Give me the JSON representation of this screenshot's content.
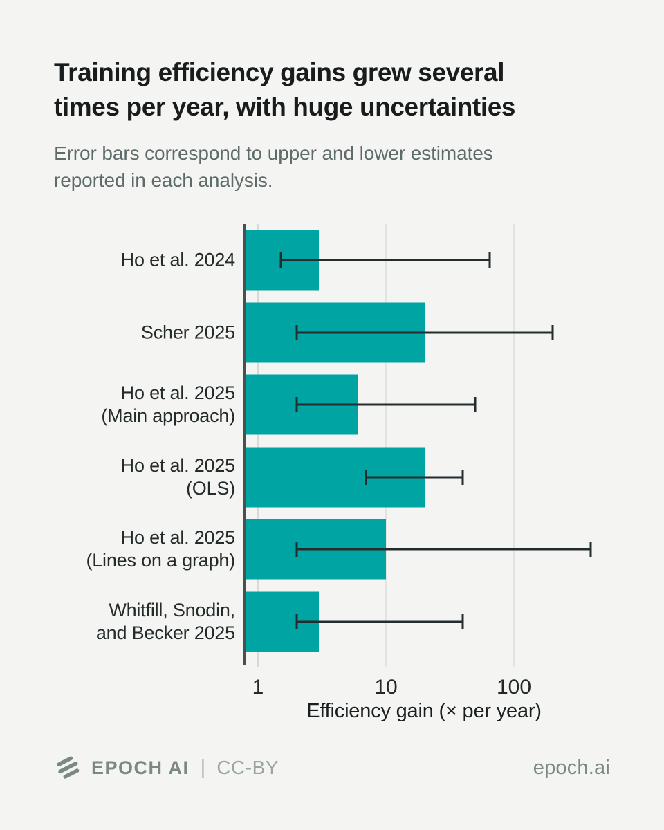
{
  "page": {
    "background": "#f4f4f2",
    "title": "Training efficiency gains grew several\ntimes per year, with huge uncertainties",
    "subtitle": "Error bars correspond to upper and lower estimates\nreported in each analysis."
  },
  "chart_data": {
    "type": "bar",
    "orientation": "horizontal",
    "x_scale": "log",
    "title": "Training efficiency gains grew several times per year, with huge uncertainties",
    "xlabel": "Efficiency gain (× per year)",
    "x_ticks": [
      1,
      10,
      100
    ],
    "x_tick_labels": [
      "1",
      "10",
      "100"
    ],
    "xlim": [
      0.78,
      830
    ],
    "grid": true,
    "gridlines_at": [
      1,
      10,
      100
    ],
    "categories": [
      "Ho et al. 2024",
      "Scher 2025",
      "Ho et al. 2025\n(Main approach)",
      "Ho et al. 2025\n(OLS)",
      "Ho et al. 2025\n(Lines on a graph)",
      "Whitfill, Snodin,\nand Becker 2025"
    ],
    "values": [
      3,
      20,
      6,
      20,
      10,
      3
    ],
    "error_low": [
      1.5,
      2,
      2,
      7,
      2,
      2
    ],
    "error_high": [
      65,
      200,
      50,
      40,
      400,
      40
    ],
    "bar_color": "#00a5a3",
    "error_color": "#232d2e",
    "legend": null
  },
  "footer": {
    "logo_icon": "epoch-logo-slashes",
    "brand": "EPOCH AI",
    "separator": "|",
    "license": "CC-BY",
    "site": "epoch.ai",
    "brand_color": "#7a8984"
  }
}
